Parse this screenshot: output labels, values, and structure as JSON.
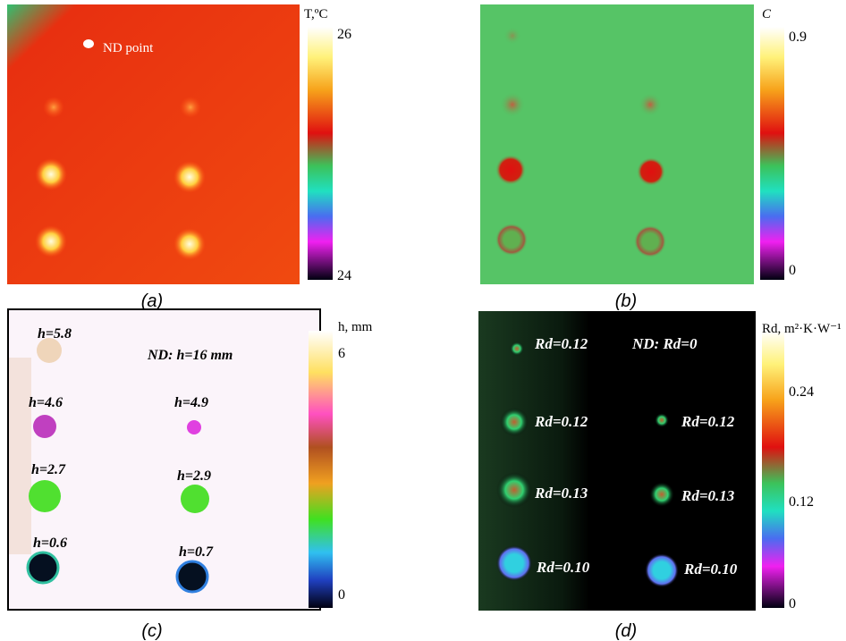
{
  "panels": [
    {
      "caption": "(a)",
      "colorbar": {
        "label": "T,ºC",
        "ticks": [
          "26",
          "24"
        ]
      },
      "annotations": [
        "ND point"
      ]
    },
    {
      "caption": "(b)",
      "colorbar": {
        "label": "C",
        "ticks": [
          "0.9",
          "0"
        ]
      }
    },
    {
      "caption": "(c)",
      "colorbar": {
        "label": "h, mm",
        "ticks": [
          "6",
          "0"
        ]
      },
      "annotations": [
        "h=5.8",
        "ND: h=16 mm",
        "h=4.6",
        "h=4.9",
        "h=2.7",
        "h=2.9",
        "h=0.6",
        "h=0.7"
      ]
    },
    {
      "caption": "(d)",
      "colorbar": {
        "label": "Rd, m²·K·W⁻¹",
        "ticks": [
          "0.24",
          "0.12",
          "0"
        ]
      },
      "annotations": [
        "Rd=0.12",
        "ND: Rd=0",
        "Rd=0.12",
        "Rd=0.12",
        "Rd=0.13",
        "Rd=0.13",
        "Rd=0.10",
        "Rd=0.10"
      ]
    }
  ]
}
